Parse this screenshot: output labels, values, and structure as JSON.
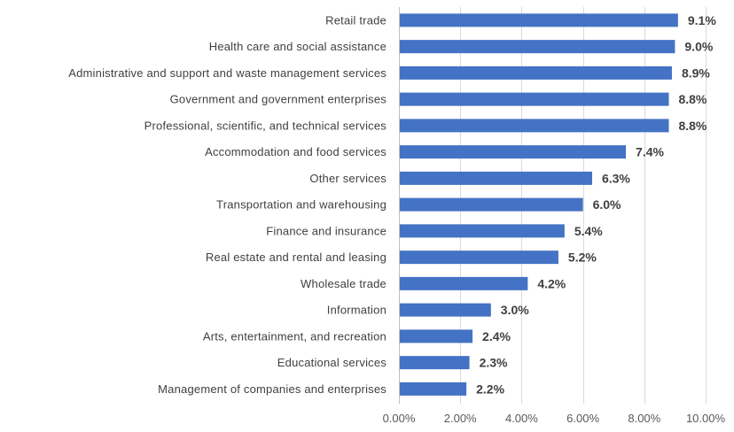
{
  "chart_data": {
    "type": "bar",
    "orientation": "horizontal",
    "title": "",
    "xlabel": "",
    "ylabel": "",
    "bar_color": "#4472C4",
    "grid": "vertical",
    "xlim": [
      0,
      10
    ],
    "x_ticks": [
      0,
      2,
      4,
      6,
      8,
      10
    ],
    "x_tick_labels": [
      "0.00%",
      "2.00%",
      "4.00%",
      "6.00%",
      "8.00%",
      "10.00%"
    ],
    "categories": [
      "Retail trade",
      "Health care and social assistance",
      "Administrative and support and waste management services",
      "Government and government enterprises",
      "Professional, scientific, and technical services",
      "Accommodation and food services",
      "Other services",
      "Transportation and warehousing",
      "Finance and insurance",
      "Real estate and rental and leasing",
      "Wholesale trade",
      "Information",
      "Arts, entertainment, and recreation",
      "Educational services",
      "Management of companies and enterprises"
    ],
    "values": [
      9.1,
      9.0,
      8.9,
      8.8,
      8.8,
      7.4,
      6.3,
      6.0,
      5.4,
      5.2,
      4.2,
      3.0,
      2.4,
      2.3,
      2.2
    ],
    "value_labels": [
      "9.1%",
      "9.0%",
      "8.9%",
      "8.8%",
      "8.8%",
      "7.4%",
      "6.3%",
      "6.0%",
      "5.4%",
      "5.2%",
      "4.2%",
      "3.0%",
      "2.4%",
      "2.3%",
      "2.2%"
    ]
  }
}
